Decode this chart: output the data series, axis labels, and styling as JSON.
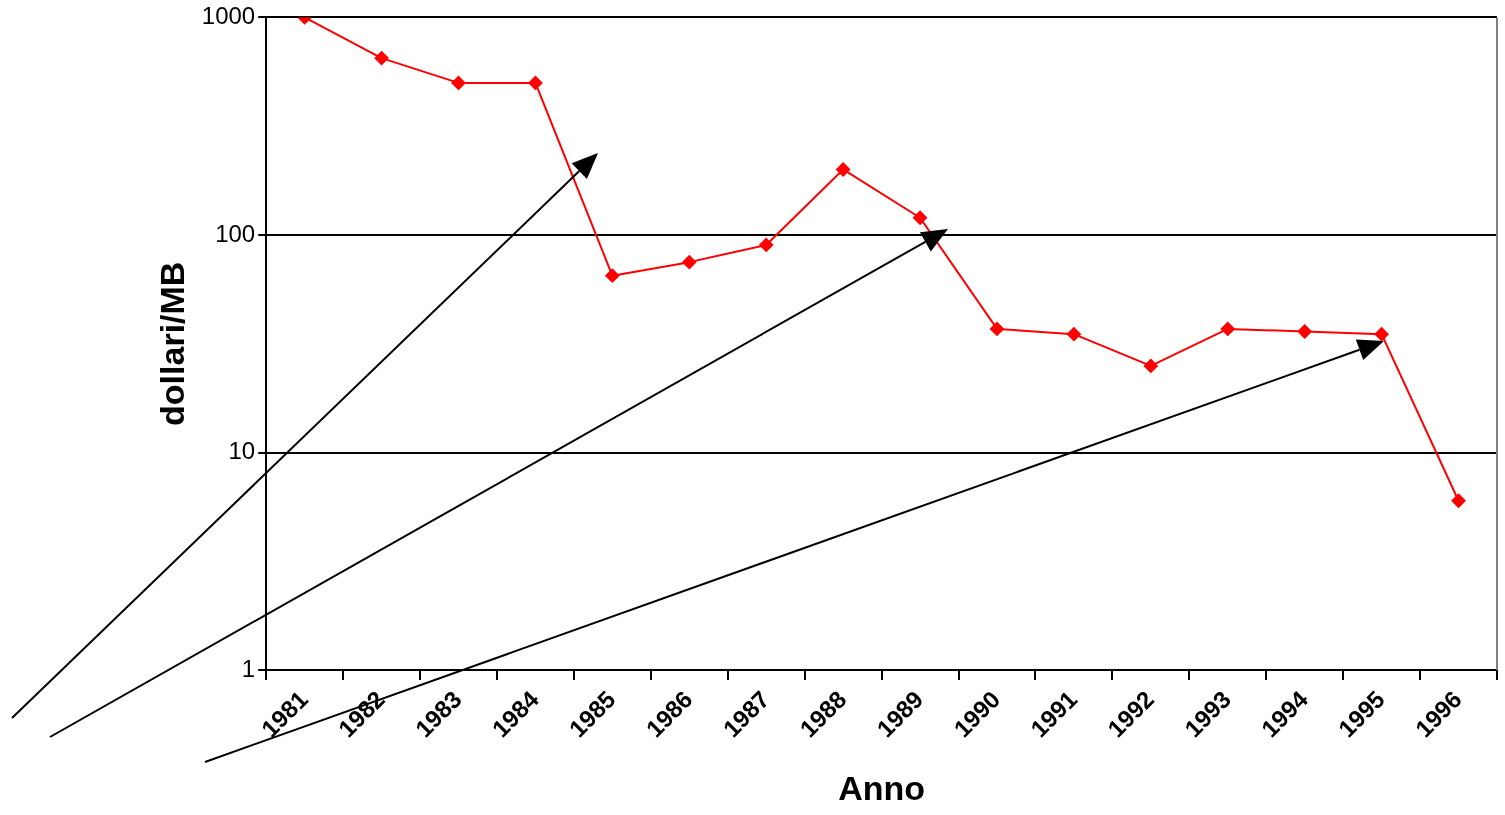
{
  "chart_data": {
    "type": "line",
    "xlabel": "Anno",
    "ylabel": "dollari/MB",
    "categories": [
      "1981",
      "1982",
      "1983",
      "1984",
      "1985",
      "1986",
      "1987",
      "1988",
      "1989",
      "1990",
      "1991",
      "1992",
      "1993",
      "1994",
      "1995",
      "1996"
    ],
    "series": [
      {
        "color": "#ff0000",
        "values": [
          1000,
          650,
          500,
          500,
          65,
          75,
          90,
          200,
          120,
          37,
          35,
          25,
          37,
          36,
          35,
          6
        ]
      }
    ],
    "log": "y",
    "ylim": [
      1,
      1000
    ],
    "yticks": [
      1,
      10,
      100,
      1000
    ],
    "grid": "y",
    "legend": false,
    "marker": "diamond",
    "line_style": "solid"
  }
}
